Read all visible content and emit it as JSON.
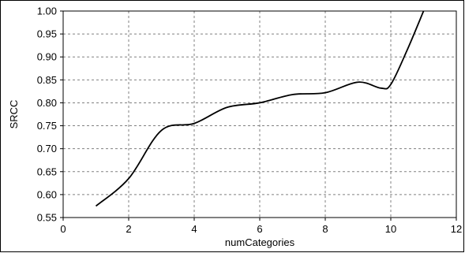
{
  "chart_data": {
    "type": "line",
    "title": "",
    "xlabel": "numCategories",
    "ylabel": "SRCC",
    "xlim": [
      0,
      12
    ],
    "ylim": [
      0.55,
      1.0
    ],
    "x_ticks": [
      0,
      2,
      4,
      6,
      8,
      10,
      12
    ],
    "y_ticks": [
      0.55,
      0.6,
      0.65,
      0.7,
      0.75,
      0.8,
      0.85,
      0.9,
      0.95,
      1.0
    ],
    "x_tick_labels": [
      "0",
      "2",
      "4",
      "6",
      "8",
      "10",
      "12"
    ],
    "y_tick_labels": [
      "0.55",
      "0.60",
      "0.65",
      "0.70",
      "0.75",
      "0.80",
      "0.85",
      "0.90",
      "0.95",
      "1.00"
    ],
    "grid": true,
    "line_color": "#000000",
    "grid_color": "#808080",
    "series": [
      {
        "x": [
          1,
          2,
          3,
          4,
          5,
          6,
          7,
          8,
          9,
          9.7,
          10,
          10.5,
          11
        ],
        "values": [
          0.575,
          0.635,
          0.74,
          0.755,
          0.79,
          0.8,
          0.818,
          0.822,
          0.845,
          0.832,
          0.84,
          0.915,
          1.0
        ]
      }
    ]
  }
}
